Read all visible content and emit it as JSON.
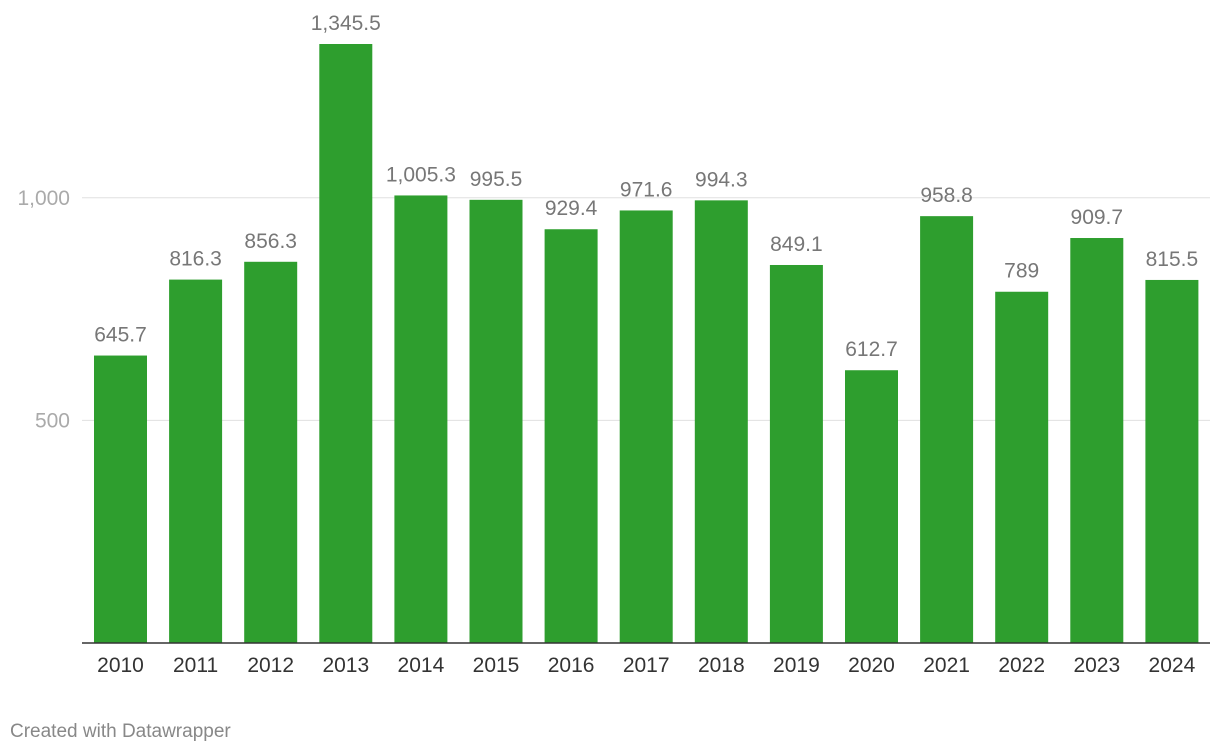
{
  "chart_data": {
    "type": "bar",
    "categories": [
      "2010",
      "2011",
      "2012",
      "2013",
      "2014",
      "2015",
      "2016",
      "2017",
      "2018",
      "2019",
      "2020",
      "2021",
      "2022",
      "2023",
      "2024"
    ],
    "values": [
      645.7,
      816.3,
      856.3,
      1345.5,
      1005.3,
      995.5,
      929.4,
      971.6,
      994.3,
      849.1,
      612.7,
      958.8,
      789,
      909.7,
      815.5
    ],
    "value_labels": [
      "645.7",
      "816.3",
      "856.3",
      "1,345.5",
      "1,005.3",
      "995.5",
      "929.4",
      "971.6",
      "994.3",
      "849.1",
      "612.7",
      "958.8",
      "789",
      "909.7",
      "815.5"
    ],
    "yticks": [
      500,
      1000
    ],
    "ytick_labels": [
      "500",
      "1,000"
    ],
    "ylim": [
      0,
      1345.5
    ],
    "grid": true,
    "bar_color": "#2e9e2e"
  },
  "footer": {
    "credit": "Created with Datawrapper"
  }
}
